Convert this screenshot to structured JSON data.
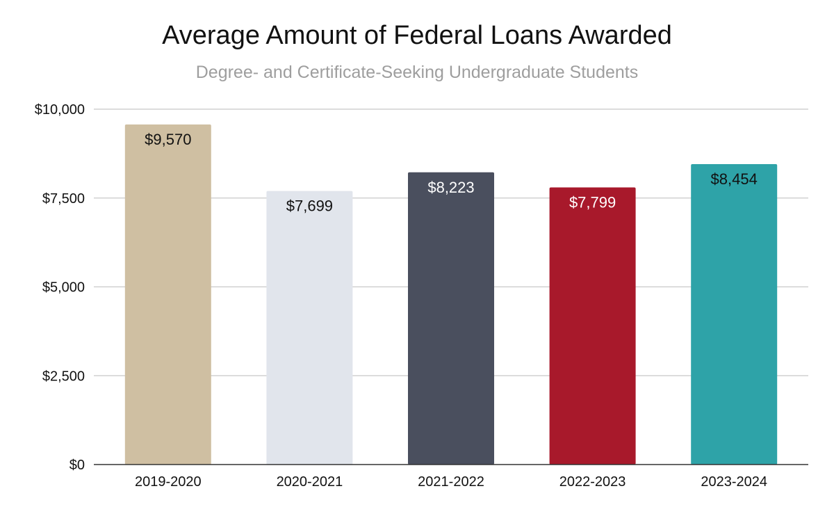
{
  "chart_data": {
    "type": "bar",
    "title": "Average Amount of Federal Loans Awarded",
    "subtitle": "Degree- and Certificate-Seeking Undergraduate Students",
    "categories": [
      "2019-2020",
      "2020-2021",
      "2021-2022",
      "2022-2023",
      "2023-2024"
    ],
    "values": [
      9570,
      7699,
      8223,
      7799,
      8454
    ],
    "data_labels": [
      "$9,570",
      "$7,699",
      "$8,223",
      "$7,799",
      "$8,454"
    ],
    "bar_colors": [
      "#cfbfa2",
      "#e1e5ec",
      "#4a4f5e",
      "#a8192b",
      "#2ea3a8"
    ],
    "label_colors": [
      "#111111",
      "#111111",
      "#ffffff",
      "#ffffff",
      "#111111"
    ],
    "y_ticks": [
      0,
      2500,
      5000,
      7500,
      10000
    ],
    "y_tick_labels": [
      "$0",
      "$2,500",
      "$5,000",
      "$7,500",
      "$10,000"
    ],
    "ylim": [
      0,
      10000
    ],
    "grid": true,
    "xlabel": "",
    "ylabel": ""
  }
}
